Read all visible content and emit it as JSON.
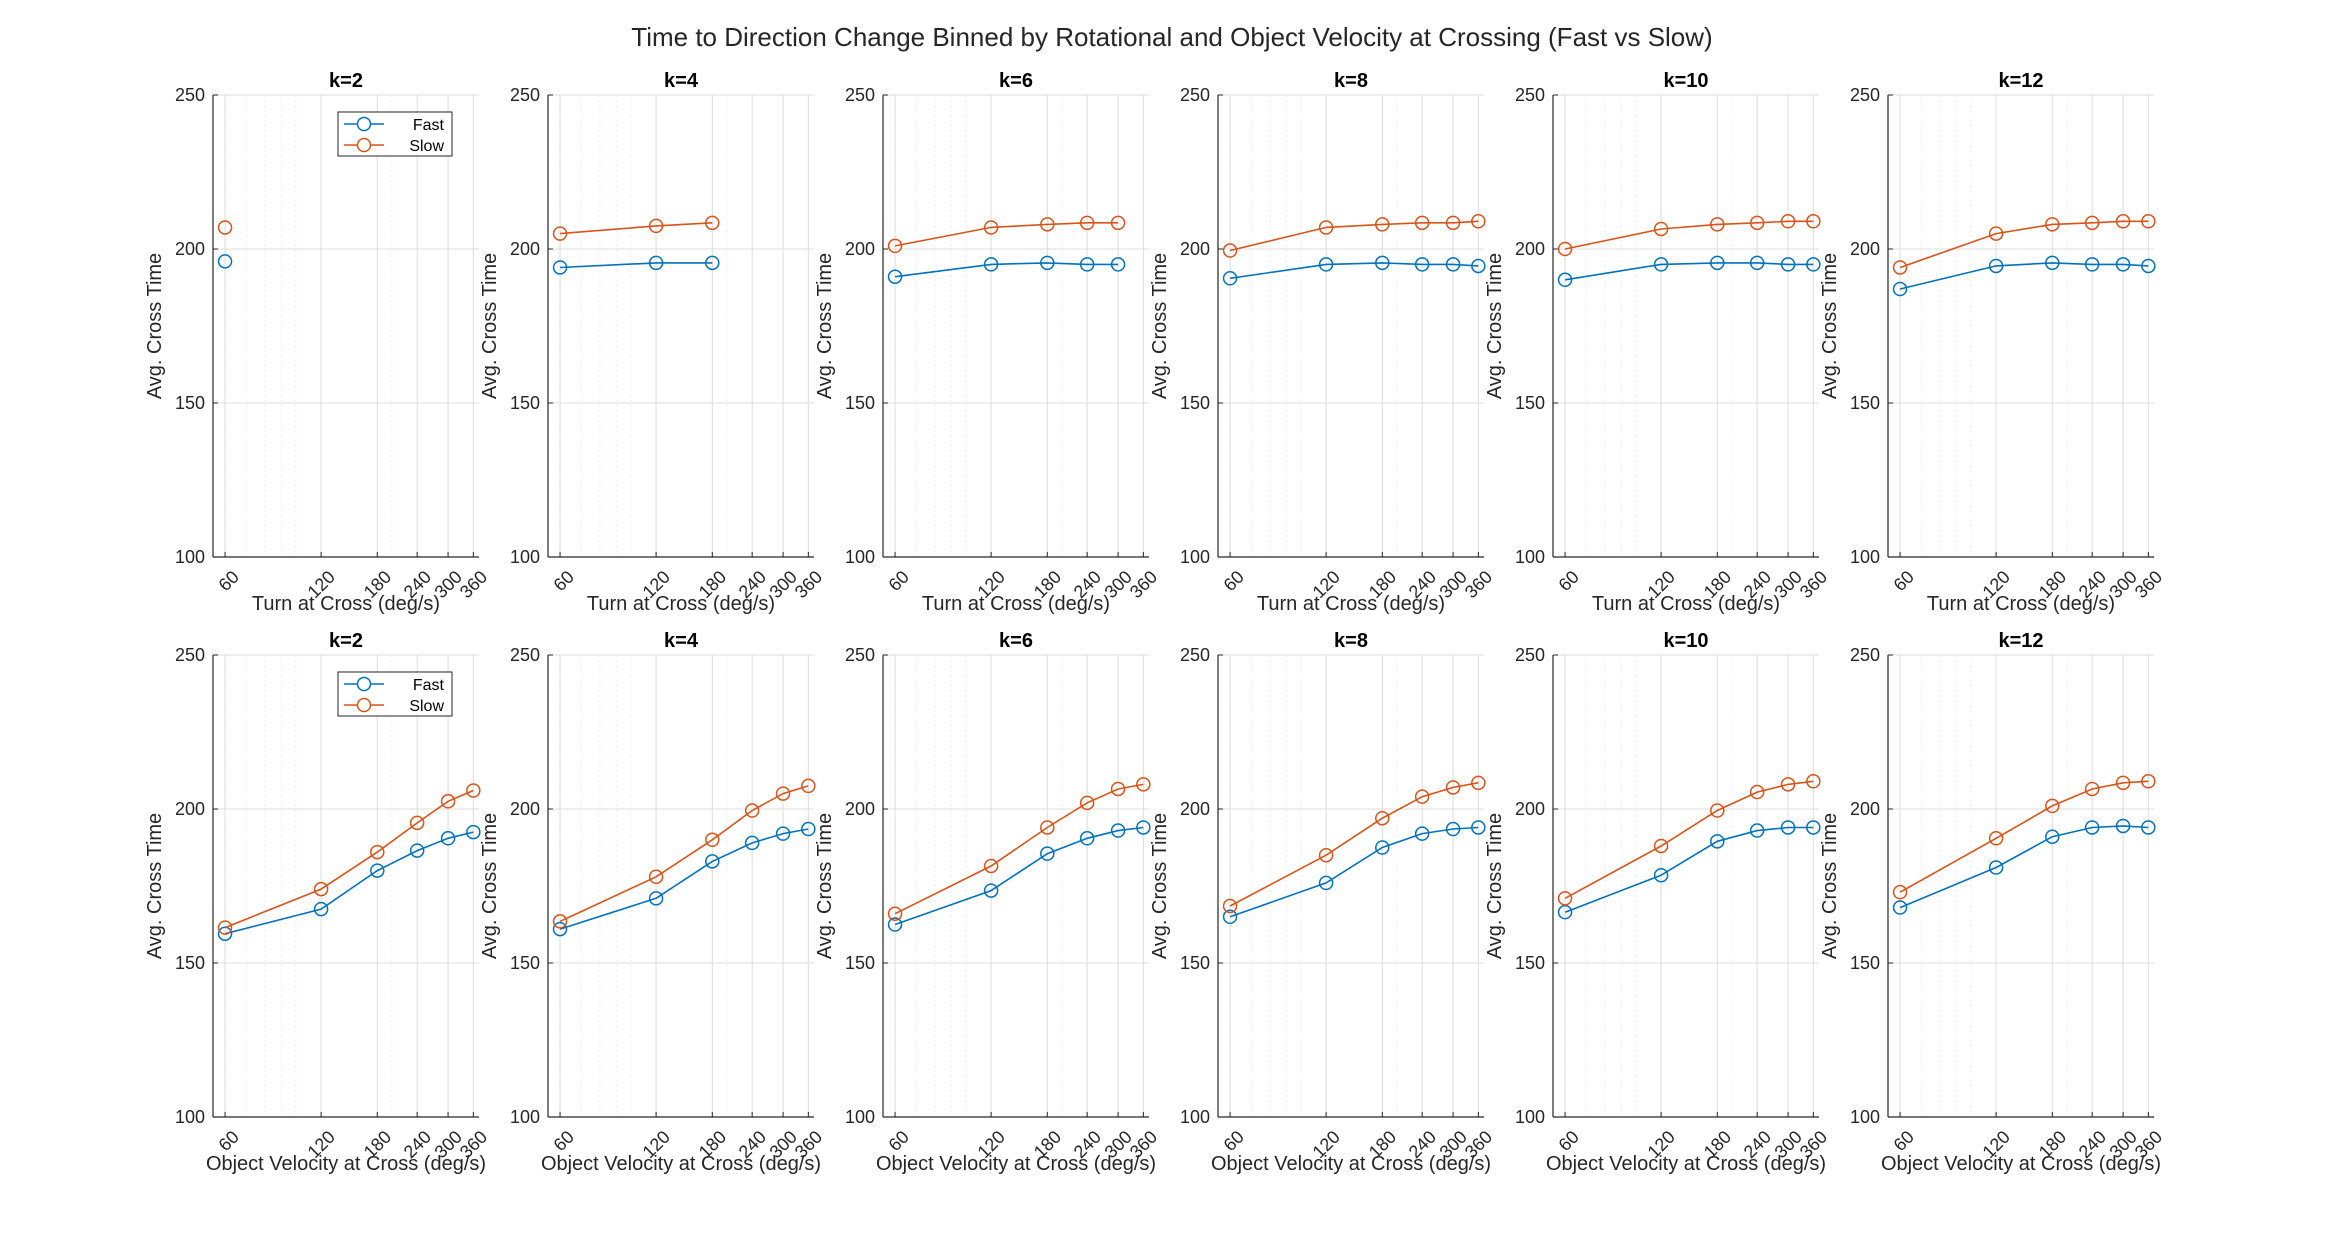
{
  "figure": {
    "title": "Time to Direction Change Binned by Rotational and Object Velocity at Crossing (Fast vs Slow)"
  },
  "colors": {
    "fast": "#0072BD",
    "slow": "#D95319",
    "axis": "#262626",
    "grid": "#dcdcdc",
    "minor_grid": "#ececec"
  },
  "chart_data": [
    {
      "type": "line",
      "title": "k=2",
      "xlabel": "Turn at Cross (deg/s)",
      "ylabel": "Avg. Cross Time",
      "ylim": [
        100,
        250
      ],
      "xlim": [
        55,
        375
      ],
      "x_scale": "log",
      "xticks": [
        60,
        120,
        180,
        240,
        300,
        360
      ],
      "yticks": [
        100,
        150,
        200,
        250
      ],
      "grid": true,
      "legend": "top-right",
      "series": [
        {
          "name": "Fast",
          "x": [
            60
          ],
          "y": [
            196
          ]
        },
        {
          "name": "Slow",
          "x": [
            60
          ],
          "y": [
            207
          ]
        }
      ]
    },
    {
      "type": "line",
      "title": "k=4",
      "xlabel": "Turn at Cross (deg/s)",
      "ylabel": "Avg. Cross Time",
      "ylim": [
        100,
        250
      ],
      "xlim": [
        55,
        375
      ],
      "x_scale": "log",
      "xticks": [
        60,
        120,
        180,
        240,
        300,
        360
      ],
      "yticks": [
        100,
        150,
        200,
        250
      ],
      "grid": true,
      "legend": "",
      "series": [
        {
          "name": "Fast",
          "x": [
            60,
            120,
            180
          ],
          "y": [
            194,
            195.5,
            195.5
          ]
        },
        {
          "name": "Slow",
          "x": [
            60,
            120,
            180
          ],
          "y": [
            205,
            207.5,
            208.5
          ]
        }
      ]
    },
    {
      "type": "line",
      "title": "k=6",
      "xlabel": "Turn at Cross (deg/s)",
      "ylabel": "Avg. Cross Time",
      "ylim": [
        100,
        250
      ],
      "xlim": [
        55,
        375
      ],
      "x_scale": "log",
      "xticks": [
        60,
        120,
        180,
        240,
        300,
        360
      ],
      "yticks": [
        100,
        150,
        200,
        250
      ],
      "grid": true,
      "legend": "",
      "series": [
        {
          "name": "Fast",
          "x": [
            60,
            120,
            180,
            240,
            300
          ],
          "y": [
            191,
            195,
            195.5,
            195,
            195
          ]
        },
        {
          "name": "Slow",
          "x": [
            60,
            120,
            180,
            240,
            300
          ],
          "y": [
            201,
            207,
            208,
            208.5,
            208.5
          ]
        }
      ]
    },
    {
      "type": "line",
      "title": "k=8",
      "xlabel": "Turn at Cross (deg/s)",
      "ylabel": "Avg. Cross Time",
      "ylim": [
        100,
        250
      ],
      "xlim": [
        55,
        375
      ],
      "x_scale": "log",
      "xticks": [
        60,
        120,
        180,
        240,
        300,
        360
      ],
      "yticks": [
        100,
        150,
        200,
        250
      ],
      "grid": true,
      "legend": "",
      "series": [
        {
          "name": "Fast",
          "x": [
            60,
            120,
            180,
            240,
            300,
            360
          ],
          "y": [
            190.5,
            195,
            195.5,
            195,
            195,
            194.5
          ]
        },
        {
          "name": "Slow",
          "x": [
            60,
            120,
            180,
            240,
            300,
            360
          ],
          "y": [
            199.5,
            207,
            208,
            208.5,
            208.5,
            209
          ]
        }
      ]
    },
    {
      "type": "line",
      "title": "k=10",
      "xlabel": "Turn at Cross (deg/s)",
      "ylabel": "Avg. Cross Time",
      "ylim": [
        100,
        250
      ],
      "xlim": [
        55,
        375
      ],
      "x_scale": "log",
      "xticks": [
        60,
        120,
        180,
        240,
        300,
        360
      ],
      "yticks": [
        100,
        150,
        200,
        250
      ],
      "grid": true,
      "legend": "",
      "series": [
        {
          "name": "Fast",
          "x": [
            60,
            120,
            180,
            240,
            300,
            360
          ],
          "y": [
            190,
            195,
            195.5,
            195.5,
            195,
            195
          ]
        },
        {
          "name": "Slow",
          "x": [
            60,
            120,
            180,
            240,
            300,
            360
          ],
          "y": [
            200,
            206.5,
            208,
            208.5,
            209,
            209
          ]
        }
      ]
    },
    {
      "type": "line",
      "title": "k=12",
      "xlabel": "Turn at Cross (deg/s)",
      "ylabel": "Avg. Cross Time",
      "ylim": [
        100,
        250
      ],
      "xlim": [
        55,
        375
      ],
      "x_scale": "log",
      "xticks": [
        60,
        120,
        180,
        240,
        300,
        360
      ],
      "yticks": [
        100,
        150,
        200,
        250
      ],
      "grid": true,
      "legend": "",
      "series": [
        {
          "name": "Fast",
          "x": [
            60,
            120,
            180,
            240,
            300,
            360
          ],
          "y": [
            187,
            194.5,
            195.5,
            195,
            195,
            194.5
          ]
        },
        {
          "name": "Slow",
          "x": [
            60,
            120,
            180,
            240,
            300,
            360
          ],
          "y": [
            194,
            205,
            208,
            208.5,
            209,
            209
          ]
        }
      ]
    },
    {
      "type": "line",
      "title": "k=2",
      "xlabel": "Object Velocity at Cross (deg/s)",
      "ylabel": "Avg. Cross Time",
      "ylim": [
        100,
        250
      ],
      "xlim": [
        55,
        375
      ],
      "x_scale": "log",
      "xticks": [
        60,
        120,
        180,
        240,
        300,
        360
      ],
      "yticks": [
        100,
        150,
        200,
        250
      ],
      "grid": true,
      "legend": "top-right",
      "series": [
        {
          "name": "Fast",
          "x": [
            60,
            120,
            180,
            240,
            300,
            360
          ],
          "y": [
            159.5,
            167.5,
            180,
            186.5,
            190.5,
            192.5
          ]
        },
        {
          "name": "Slow",
          "x": [
            60,
            120,
            180,
            240,
            300,
            360
          ],
          "y": [
            161.5,
            174,
            186,
            195.5,
            202.5,
            206
          ]
        }
      ]
    },
    {
      "type": "line",
      "title": "k=4",
      "xlabel": "Object Velocity at Cross (deg/s)",
      "ylabel": "Avg. Cross Time",
      "ylim": [
        100,
        250
      ],
      "xlim": [
        55,
        375
      ],
      "x_scale": "log",
      "xticks": [
        60,
        120,
        180,
        240,
        300,
        360
      ],
      "yticks": [
        100,
        150,
        200,
        250
      ],
      "grid": true,
      "legend": "",
      "series": [
        {
          "name": "Fast",
          "x": [
            60,
            120,
            180,
            240,
            300,
            360
          ],
          "y": [
            161,
            171,
            183,
            189,
            192,
            193.5
          ]
        },
        {
          "name": "Slow",
          "x": [
            60,
            120,
            180,
            240,
            300,
            360
          ],
          "y": [
            163.5,
            178,
            190,
            199.5,
            205,
            207.5
          ]
        }
      ]
    },
    {
      "type": "line",
      "title": "k=6",
      "xlabel": "Object Velocity at Cross (deg/s)",
      "ylabel": "Avg. Cross Time",
      "ylim": [
        100,
        250
      ],
      "xlim": [
        55,
        375
      ],
      "x_scale": "log",
      "xticks": [
        60,
        120,
        180,
        240,
        300,
        360
      ],
      "yticks": [
        100,
        150,
        200,
        250
      ],
      "grid": true,
      "legend": "",
      "series": [
        {
          "name": "Fast",
          "x": [
            60,
            120,
            180,
            240,
            300,
            360
          ],
          "y": [
            162.5,
            173.5,
            185.5,
            190.5,
            193,
            194
          ]
        },
        {
          "name": "Slow",
          "x": [
            60,
            120,
            180,
            240,
            300,
            360
          ],
          "y": [
            166,
            181.5,
            194,
            202,
            206.5,
            208
          ]
        }
      ]
    },
    {
      "type": "line",
      "title": "k=8",
      "xlabel": "Object Velocity at Cross (deg/s)",
      "ylabel": "Avg. Cross Time",
      "ylim": [
        100,
        250
      ],
      "xlim": [
        55,
        375
      ],
      "x_scale": "log",
      "xticks": [
        60,
        120,
        180,
        240,
        300,
        360
      ],
      "yticks": [
        100,
        150,
        200,
        250
      ],
      "grid": true,
      "legend": "",
      "series": [
        {
          "name": "Fast",
          "x": [
            60,
            120,
            180,
            240,
            300,
            360
          ],
          "y": [
            165,
            176,
            187.5,
            192,
            193.5,
            194
          ]
        },
        {
          "name": "Slow",
          "x": [
            60,
            120,
            180,
            240,
            300,
            360
          ],
          "y": [
            168.5,
            185,
            197,
            204,
            207,
            208.5
          ]
        }
      ]
    },
    {
      "type": "line",
      "title": "k=10",
      "xlabel": "Object Velocity at Cross (deg/s)",
      "ylabel": "Avg. Cross Time",
      "ylim": [
        100,
        250
      ],
      "xlim": [
        55,
        375
      ],
      "x_scale": "log",
      "xticks": [
        60,
        120,
        180,
        240,
        300,
        360
      ],
      "yticks": [
        100,
        150,
        200,
        250
      ],
      "grid": true,
      "legend": "",
      "series": [
        {
          "name": "Fast",
          "x": [
            60,
            120,
            180,
            240,
            300,
            360
          ],
          "y": [
            166.5,
            178.5,
            189.5,
            193,
            194,
            194
          ]
        },
        {
          "name": "Slow",
          "x": [
            60,
            120,
            180,
            240,
            300,
            360
          ],
          "y": [
            171,
            188,
            199.5,
            205.5,
            208,
            209
          ]
        }
      ]
    },
    {
      "type": "line",
      "title": "k=12",
      "xlabel": "Object Velocity at Cross (deg/s)",
      "ylabel": "Avg. Cross Time",
      "ylim": [
        100,
        250
      ],
      "xlim": [
        55,
        375
      ],
      "x_scale": "log",
      "xticks": [
        60,
        120,
        180,
        240,
        300,
        360
      ],
      "yticks": [
        100,
        150,
        200,
        250
      ],
      "grid": true,
      "legend": "",
      "series": [
        {
          "name": "Fast",
          "x": [
            60,
            120,
            180,
            240,
            300,
            360
          ],
          "y": [
            168,
            181,
            191,
            194,
            194.5,
            194
          ]
        },
        {
          "name": "Slow",
          "x": [
            60,
            120,
            180,
            240,
            300,
            360
          ],
          "y": [
            173,
            190.5,
            201,
            206.5,
            208.5,
            209
          ]
        }
      ]
    }
  ]
}
